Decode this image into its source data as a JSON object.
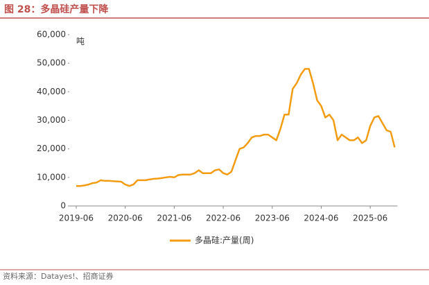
{
  "header": {
    "title": "图 28：多晶硅产量下降"
  },
  "chart_data": {
    "type": "line",
    "unit_label": "吨",
    "x": [
      "2019-06",
      "2019-07",
      "2019-08",
      "2019-09",
      "2019-10",
      "2019-11",
      "2019-12",
      "2020-01",
      "2020-02",
      "2020-03",
      "2020-04",
      "2020-05",
      "2020-06",
      "2020-07",
      "2020-08",
      "2020-09",
      "2020-10",
      "2020-11",
      "2020-12",
      "2021-01",
      "2021-02",
      "2021-03",
      "2021-04",
      "2021-05",
      "2021-06",
      "2021-07",
      "2021-08",
      "2021-09",
      "2021-10",
      "2021-11",
      "2021-12",
      "2022-01",
      "2022-02",
      "2022-03",
      "2022-04",
      "2022-05",
      "2022-06",
      "2022-07",
      "2022-08",
      "2022-09",
      "2022-10",
      "2022-11",
      "2022-12",
      "2023-01",
      "2023-02",
      "2023-03",
      "2023-04",
      "2023-05",
      "2023-06",
      "2023-07",
      "2023-08",
      "2023-09",
      "2023-10",
      "2023-11",
      "2023-12",
      "2024-01",
      "2024-02",
      "2024-03",
      "2024-04",
      "2024-05",
      "2024-06",
      "2024-07",
      "2024-08",
      "2024-09",
      "2024-10",
      "2024-11",
      "2024-12",
      "2025-01",
      "2025-02",
      "2025-03",
      "2025-04",
      "2025-05",
      "2025-06",
      "2025-07",
      "2025-08",
      "2025-09",
      "2025-10",
      "2025-11",
      "2025-12"
    ],
    "series": [
      {
        "name": "多晶硅:产量(周)",
        "color": "#f39c12",
        "values": [
          7000,
          7000,
          7200,
          7500,
          8000,
          8200,
          9000,
          8800,
          8800,
          8700,
          8600,
          8500,
          7500,
          7000,
          7500,
          9000,
          9000,
          9000,
          9300,
          9500,
          9600,
          9800,
          10000,
          10200,
          10000,
          10800,
          11000,
          11000,
          11000,
          11500,
          12500,
          11500,
          11500,
          11500,
          12500,
          12800,
          11500,
          11000,
          12000,
          16000,
          20000,
          20500,
          22000,
          24000,
          24500,
          24500,
          25000,
          25000,
          24000,
          23000,
          27000,
          32000,
          32000,
          41000,
          43000,
          46000,
          48000,
          48000,
          43000,
          37000,
          35000,
          31000,
          32000,
          30000,
          23000,
          25000,
          24000,
          23000,
          23000,
          24000,
          22000,
          23000,
          28000,
          31000,
          31500,
          29000,
          26500,
          26000,
          20500
        ]
      }
    ],
    "ylim": [
      0,
      60000
    ],
    "yticks": [
      0,
      {
        "value": 10000,
        "label": "10,000"
      },
      {
        "value": 20000,
        "label": "20,000"
      },
      {
        "value": 30000,
        "label": "30,000"
      },
      {
        "value": 40000,
        "label": "40,000"
      },
      {
        "value": 50000,
        "label": "50,000"
      },
      {
        "value": 60000,
        "label": "60,000"
      }
    ],
    "xticks": [
      "2019-06",
      "2020-06",
      "2021-06",
      "2022-06",
      "2023-06",
      "2024-06",
      "2025-06"
    ]
  },
  "footer": {
    "source": "资料来源：Datayes!、招商证券"
  }
}
